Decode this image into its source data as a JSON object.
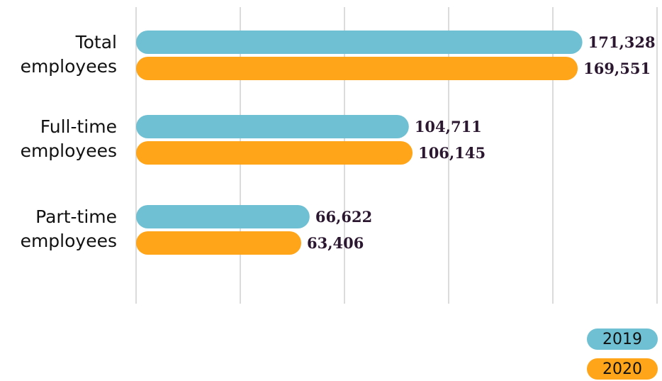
{
  "chart_data": {
    "type": "bar",
    "orientation": "horizontal",
    "categories": [
      "Total employees",
      "Full-time employees",
      "Part-time employees"
    ],
    "series": [
      {
        "name": "2019",
        "color": "#6fc0d3",
        "values": [
          171328,
          104711,
          66622
        ],
        "value_labels": [
          "171,328",
          "104,711",
          "66,622"
        ]
      },
      {
        "name": "2020",
        "color": "#ffa51a",
        "values": [
          169551,
          106145,
          63406
        ],
        "value_labels": [
          "169,551",
          "106,145",
          "63,406"
        ]
      }
    ],
    "xlim": [
      0,
      200000
    ],
    "xticks": [
      0,
      40000,
      80000,
      120000,
      160000,
      200000
    ],
    "grid": true,
    "legend": "bottom-right"
  }
}
